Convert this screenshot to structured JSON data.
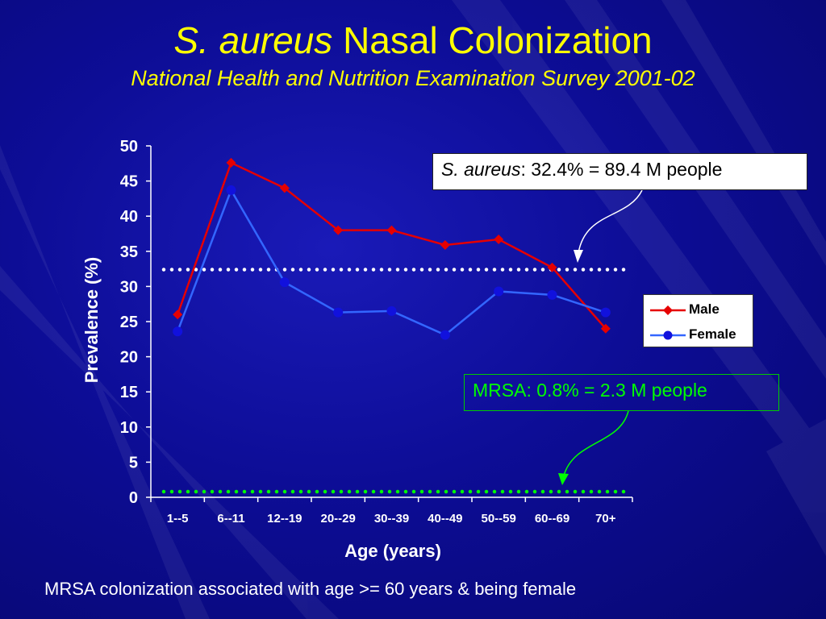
{
  "slide": {
    "title_italic": "S. aureus",
    "title_rest": "Nasal Colonization",
    "subtitle": "National Health and Nutrition Examination Survey 2001-02",
    "footnote": "MRSA colonization associated with age >= 60 years & being female"
  },
  "callouts": {
    "s_aureus_italic": "S. aureus",
    "s_aureus_rest": ": 32.4% = 89.4 M people",
    "mrsa": "MRSA: 0.8% = 2.3 M people"
  },
  "colors": {
    "background": "#0d0d96",
    "title": "#ffff00",
    "male": "#e60000",
    "female": "#3366ff",
    "s_aureus_line": "#ffffff",
    "mrsa_line": "#00ff00"
  },
  "chart_data": {
    "type": "line",
    "xlabel": "Age (years)",
    "ylabel": "Prevalence (%)",
    "ylim": [
      0,
      50
    ],
    "yticks": [
      0,
      5,
      10,
      15,
      20,
      25,
      30,
      35,
      40,
      45,
      50
    ],
    "categories": [
      "1--5",
      "6--11",
      "12--19",
      "20--29",
      "30--39",
      "40--49",
      "50--59",
      "60--69",
      "70+"
    ],
    "series": [
      {
        "name": "Male",
        "values": [
          26,
          47.6,
          44,
          38,
          38,
          35.9,
          36.7,
          32.7,
          24
        ]
      },
      {
        "name": "Female",
        "values": [
          23.6,
          43.7,
          30.6,
          26.3,
          26.5,
          23.1,
          29.3,
          28.8,
          26.3
        ]
      }
    ],
    "reference_lines": [
      {
        "label": "S. aureus overall",
        "value": 32.4
      },
      {
        "label": "MRSA overall",
        "value": 0.8
      }
    ],
    "legend_position": "right",
    "grid": false
  }
}
